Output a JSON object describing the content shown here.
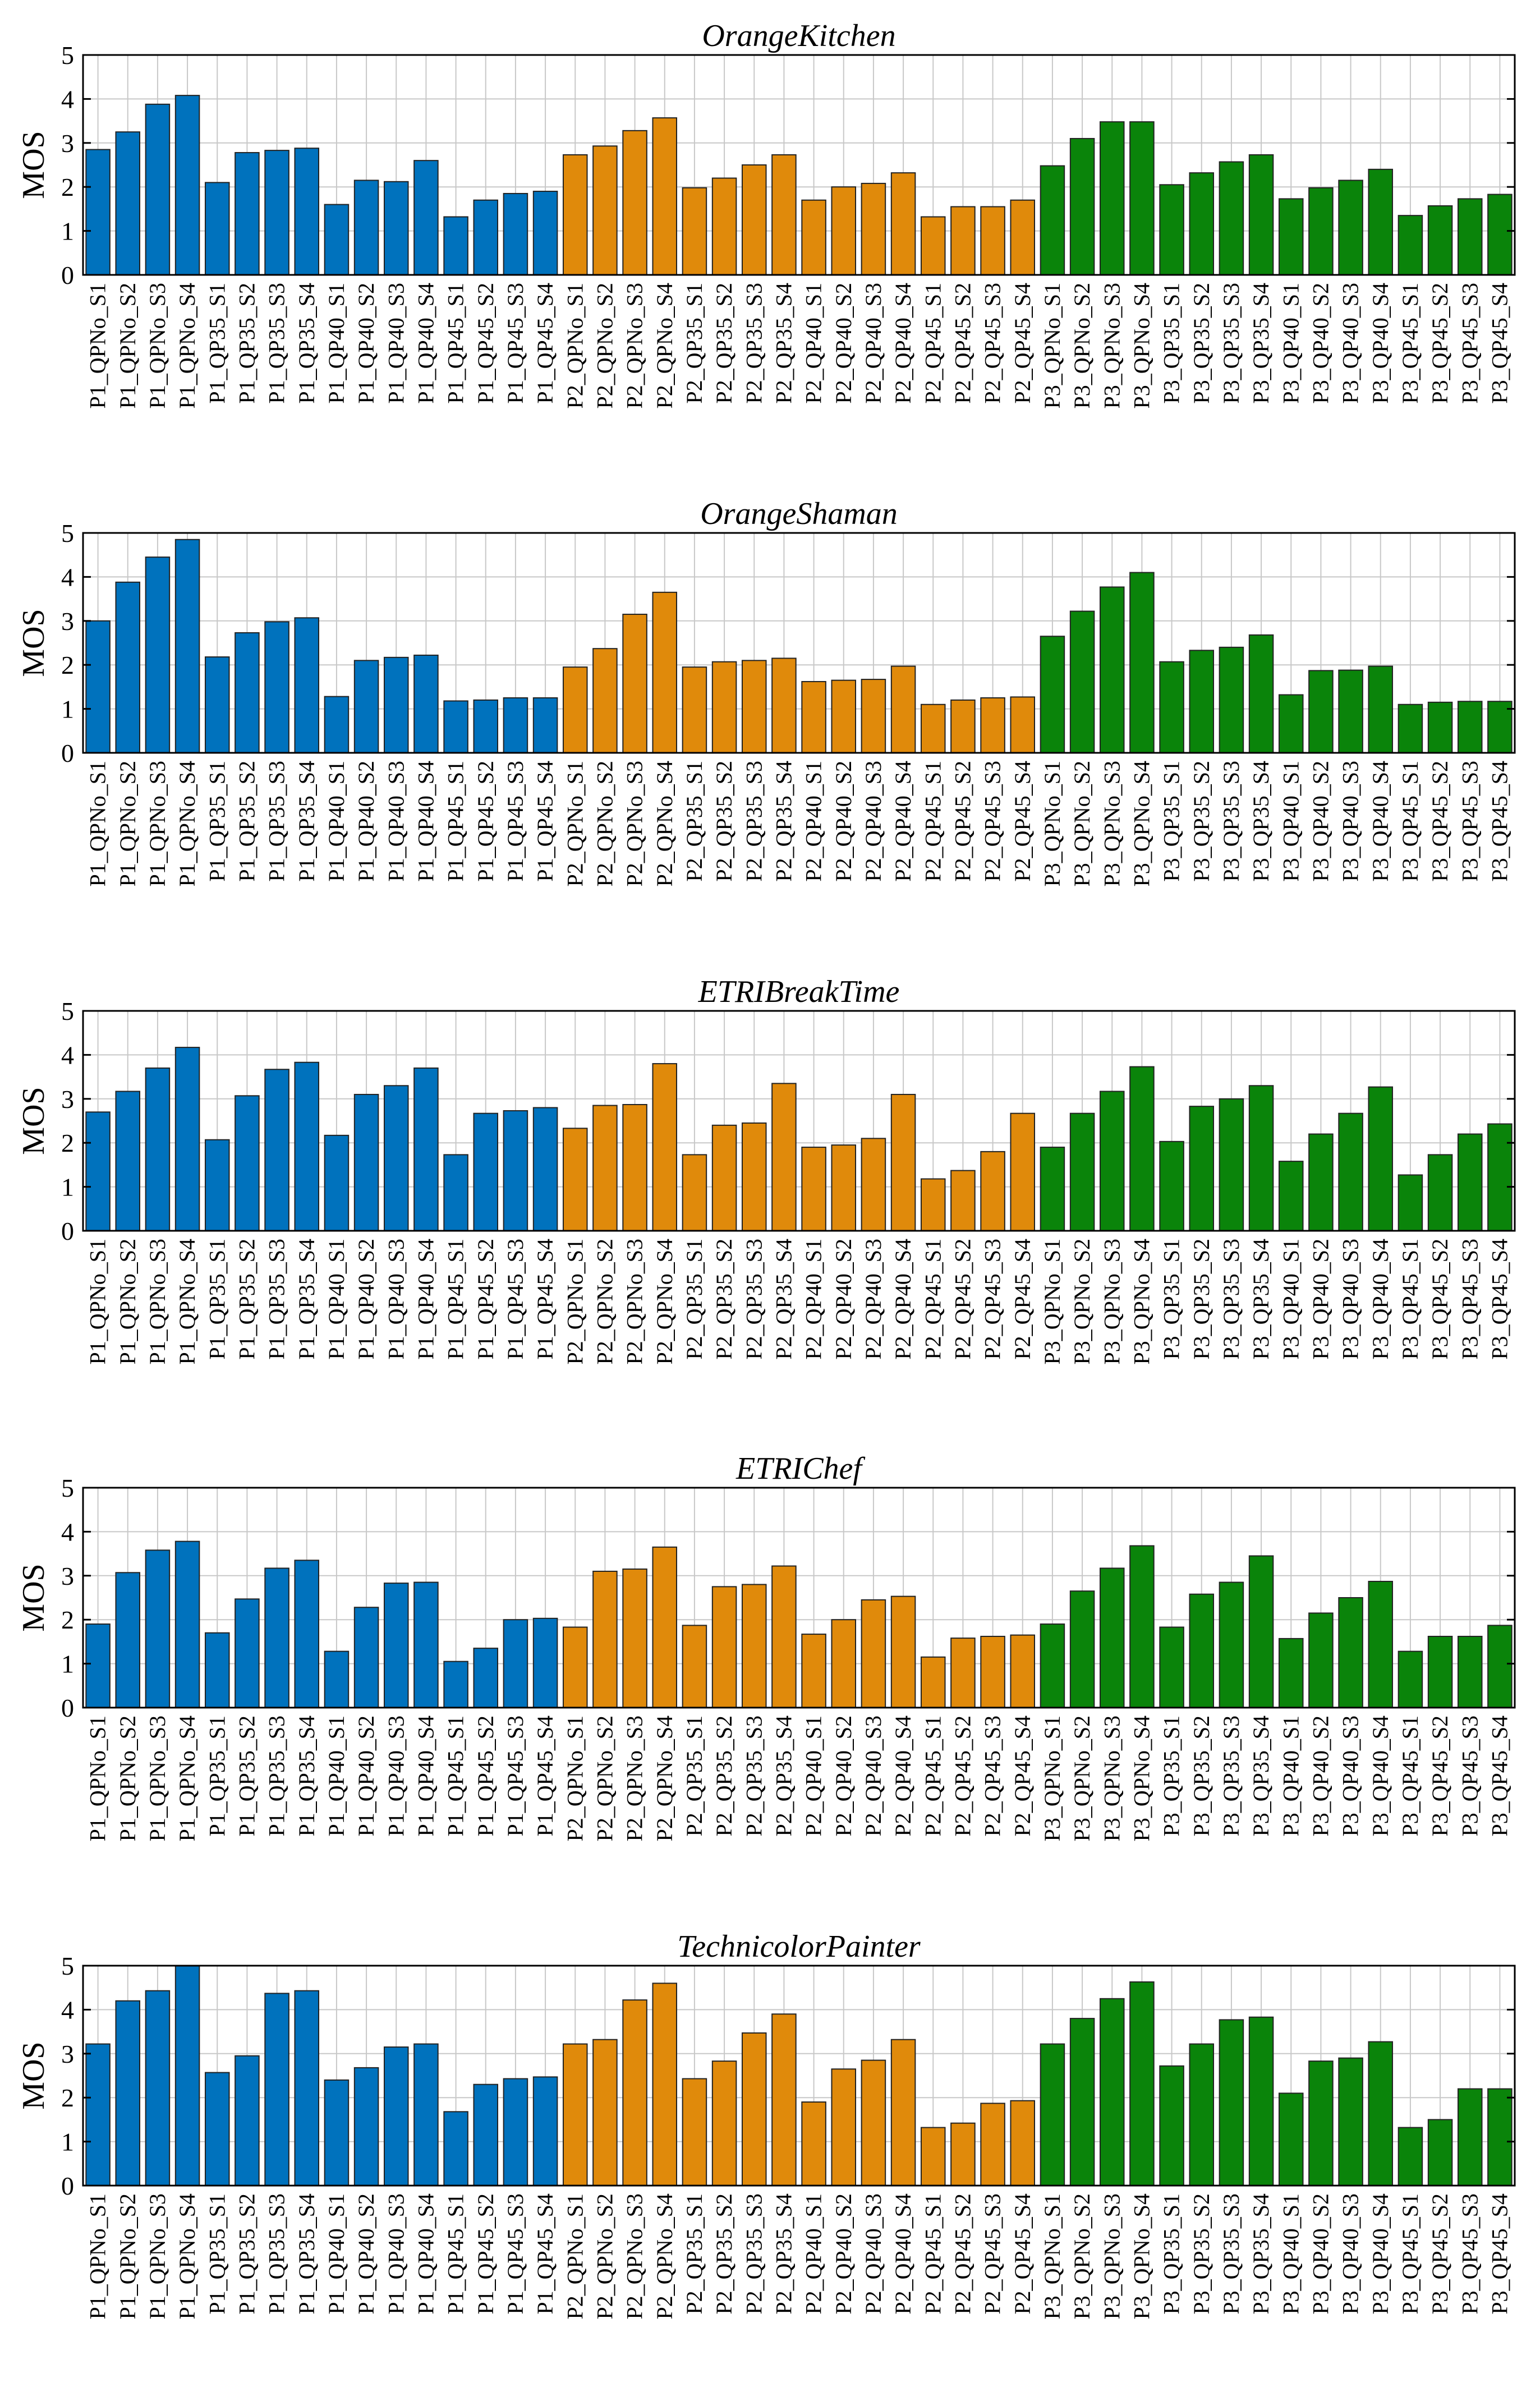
{
  "colors": {
    "P1": "#0072bd",
    "P2": "#e08a0b",
    "P3": "#0a840a"
  },
  "chart_data": [
    {
      "type": "bar",
      "title": "OrangeKitchen",
      "ylabel": "MOS",
      "ylim": [
        0,
        5
      ],
      "yticks": [
        "0",
        "1",
        "2",
        "3",
        "4",
        "5"
      ],
      "grid": true,
      "categories": [
        "P1_QPNo_S1",
        "P1_QPNo_S2",
        "P1_QPNo_S3",
        "P1_QPNo_S4",
        "P1_QP35_S1",
        "P1_QP35_S2",
        "P1_QP35_S3",
        "P1_QP35_S4",
        "P1_QP40_S1",
        "P1_QP40_S2",
        "P1_QP40_S3",
        "P1_QP40_S4",
        "P1_QP45_S1",
        "P1_QP45_S2",
        "P1_QP45_S3",
        "P1_QP45_S4",
        "P2_QPNo_S1",
        "P2_QPNo_S2",
        "P2_QPNo_S3",
        "P2_QPNo_S4",
        "P2_QP35_S1",
        "P2_QP35_S2",
        "P2_QP35_S3",
        "P2_QP35_S4",
        "P2_QP40_S1",
        "P2_QP40_S2",
        "P2_QP40_S3",
        "P2_QP40_S4",
        "P2_QP45_S1",
        "P2_QP45_S2",
        "P2_QP45_S3",
        "P2_QP45_S4",
        "P3_QPNo_S1",
        "P3_QPNo_S2",
        "P3_QPNo_S3",
        "P3_QPNo_S4",
        "P3_QP35_S1",
        "P3_QP35_S2",
        "P3_QP35_S3",
        "P3_QP35_S4",
        "P3_QP40_S1",
        "P3_QP40_S2",
        "P3_QP40_S3",
        "P3_QP40_S4",
        "P3_QP45_S1",
        "P3_QP45_S2",
        "P3_QP45_S3",
        "P3_QP45_S4"
      ],
      "values": [
        2.85,
        3.25,
        3.88,
        4.08,
        2.1,
        2.78,
        2.83,
        2.88,
        1.6,
        2.15,
        2.12,
        2.6,
        1.32,
        1.7,
        1.85,
        1.9,
        2.73,
        2.93,
        3.28,
        3.57,
        1.98,
        2.2,
        2.5,
        2.73,
        1.7,
        2.0,
        2.08,
        2.32,
        1.32,
        1.55,
        1.55,
        1.7,
        2.48,
        3.1,
        3.48,
        3.48,
        2.05,
        2.32,
        2.57,
        2.73,
        1.73,
        1.98,
        2.15,
        2.4,
        1.35,
        1.57,
        1.73,
        1.83
      ]
    },
    {
      "type": "bar",
      "title": "OrangeShaman",
      "ylabel": "MOS",
      "ylim": [
        0,
        5
      ],
      "yticks": [
        "0",
        "1",
        "2",
        "3",
        "4",
        "5"
      ],
      "grid": true,
      "categories": [
        "P1_QPNo_S1",
        "P1_QPNo_S2",
        "P1_QPNo_S3",
        "P1_QPNo_S4",
        "P1_QP35_S1",
        "P1_QP35_S2",
        "P1_QP35_S3",
        "P1_QP35_S4",
        "P1_QP40_S1",
        "P1_QP40_S2",
        "P1_QP40_S3",
        "P1_QP40_S4",
        "P1_QP45_S1",
        "P1_QP45_S2",
        "P1_QP45_S3",
        "P1_QP45_S4",
        "P2_QPNo_S1",
        "P2_QPNo_S2",
        "P2_QPNo_S3",
        "P2_QPNo_S4",
        "P2_QP35_S1",
        "P2_QP35_S2",
        "P2_QP35_S3",
        "P2_QP35_S4",
        "P2_QP40_S1",
        "P2_QP40_S2",
        "P2_QP40_S3",
        "P2_QP40_S4",
        "P2_QP45_S1",
        "P2_QP45_S2",
        "P2_QP45_S3",
        "P2_QP45_S4",
        "P3_QPNo_S1",
        "P3_QPNo_S2",
        "P3_QPNo_S3",
        "P3_QPNo_S4",
        "P3_QP35_S1",
        "P3_QP35_S2",
        "P3_QP35_S3",
        "P3_QP35_S4",
        "P3_QP40_S1",
        "P3_QP40_S2",
        "P3_QP40_S3",
        "P3_QP40_S4",
        "P3_QP45_S1",
        "P3_QP45_S2",
        "P3_QP45_S3",
        "P3_QP45_S4"
      ],
      "values": [
        3.0,
        3.88,
        4.45,
        4.85,
        2.18,
        2.73,
        2.98,
        3.07,
        1.28,
        2.1,
        2.17,
        2.22,
        1.18,
        1.2,
        1.25,
        1.25,
        1.95,
        2.37,
        3.15,
        3.65,
        1.95,
        2.07,
        2.1,
        2.15,
        1.62,
        1.65,
        1.67,
        1.97,
        1.1,
        1.2,
        1.25,
        1.27,
        2.65,
        3.22,
        3.77,
        4.1,
        2.07,
        2.33,
        2.4,
        2.68,
        1.32,
        1.87,
        1.88,
        1.97,
        1.1,
        1.15,
        1.17,
        1.17
      ]
    },
    {
      "type": "bar",
      "title": "ETRIBreakTime",
      "ylabel": "MOS",
      "ylim": [
        0,
        5
      ],
      "yticks": [
        "0",
        "1",
        "2",
        "3",
        "4",
        "5"
      ],
      "grid": true,
      "categories": [
        "P1_QPNo_S1",
        "P1_QPNo_S2",
        "P1_QPNo_S3",
        "P1_QPNo_S4",
        "P1_QP35_S1",
        "P1_QP35_S2",
        "P1_QP35_S3",
        "P1_QP35_S4",
        "P1_QP40_S1",
        "P1_QP40_S2",
        "P1_QP40_S3",
        "P1_QP40_S4",
        "P1_QP45_S1",
        "P1_QP45_S2",
        "P1_QP45_S3",
        "P1_QP45_S4",
        "P2_QPNo_S1",
        "P2_QPNo_S2",
        "P2_QPNo_S3",
        "P2_QPNo_S4",
        "P2_QP35_S1",
        "P2_QP35_S2",
        "P2_QP35_S3",
        "P2_QP35_S4",
        "P2_QP40_S1",
        "P2_QP40_S2",
        "P2_QP40_S3",
        "P2_QP40_S4",
        "P2_QP45_S1",
        "P2_QP45_S2",
        "P2_QP45_S3",
        "P2_QP45_S4",
        "P3_QPNo_S1",
        "P3_QPNo_S2",
        "P3_QPNo_S3",
        "P3_QPNo_S4",
        "P3_QP35_S1",
        "P3_QP35_S2",
        "P3_QP35_S3",
        "P3_QP35_S4",
        "P3_QP40_S1",
        "P3_QP40_S2",
        "P3_QP40_S3",
        "P3_QP40_S4",
        "P3_QP45_S1",
        "P3_QP45_S2",
        "P3_QP45_S3",
        "P3_QP45_S4"
      ],
      "values": [
        2.7,
        3.17,
        3.7,
        4.17,
        2.07,
        3.07,
        3.67,
        3.83,
        2.17,
        3.1,
        3.3,
        3.7,
        1.73,
        2.67,
        2.73,
        2.8,
        2.33,
        2.85,
        2.87,
        3.8,
        1.73,
        2.4,
        2.45,
        3.35,
        1.9,
        1.95,
        2.1,
        3.1,
        1.18,
        1.37,
        1.8,
        2.67,
        1.9,
        2.67,
        3.17,
        3.73,
        2.03,
        2.83,
        3.0,
        3.3,
        1.58,
        2.2,
        2.67,
        3.27,
        1.27,
        1.73,
        2.2,
        2.43
      ]
    },
    {
      "type": "bar",
      "title": "ETRIChef",
      "ylabel": "MOS",
      "ylim": [
        0,
        5
      ],
      "yticks": [
        "0",
        "1",
        "2",
        "3",
        "4",
        "5"
      ],
      "grid": true,
      "categories": [
        "P1_QPNo_S1",
        "P1_QPNo_S2",
        "P1_QPNo_S3",
        "P1_QPNo_S4",
        "P1_QP35_S1",
        "P1_QP35_S2",
        "P1_QP35_S3",
        "P1_QP35_S4",
        "P1_QP40_S1",
        "P1_QP40_S2",
        "P1_QP40_S3",
        "P1_QP40_S4",
        "P1_QP45_S1",
        "P1_QP45_S2",
        "P1_QP45_S3",
        "P1_QP45_S4",
        "P2_QPNo_S1",
        "P2_QPNo_S2",
        "P2_QPNo_S3",
        "P2_QPNo_S4",
        "P2_QP35_S1",
        "P2_QP35_S2",
        "P2_QP35_S3",
        "P2_QP35_S4",
        "P2_QP40_S1",
        "P2_QP40_S2",
        "P2_QP40_S3",
        "P2_QP40_S4",
        "P2_QP45_S1",
        "P2_QP45_S2",
        "P2_QP45_S3",
        "P2_QP45_S4",
        "P3_QPNo_S1",
        "P3_QPNo_S2",
        "P3_QPNo_S3",
        "P3_QPNo_S4",
        "P3_QP35_S1",
        "P3_QP35_S2",
        "P3_QP35_S3",
        "P3_QP35_S4",
        "P3_QP40_S1",
        "P3_QP40_S2",
        "P3_QP40_S3",
        "P3_QP40_S4",
        "P3_QP45_S1",
        "P3_QP45_S2",
        "P3_QP45_S3",
        "P3_QP45_S4"
      ],
      "values": [
        1.9,
        3.07,
        3.58,
        3.78,
        1.7,
        2.47,
        3.17,
        3.35,
        1.28,
        2.28,
        2.83,
        2.85,
        1.05,
        1.35,
        2.0,
        2.03,
        1.83,
        3.1,
        3.15,
        3.65,
        1.87,
        2.75,
        2.8,
        3.22,
        1.67,
        2.0,
        2.45,
        2.53,
        1.15,
        1.58,
        1.62,
        1.65,
        1.9,
        2.65,
        3.17,
        3.68,
        1.83,
        2.58,
        2.85,
        3.45,
        1.57,
        2.15,
        2.5,
        2.87,
        1.28,
        1.62,
        1.62,
        1.87
      ]
    },
    {
      "type": "bar",
      "title": "TechnicolorPainter",
      "ylabel": "MOS",
      "ylim": [
        0,
        5
      ],
      "yticks": [
        "0",
        "1",
        "2",
        "3",
        "4",
        "5"
      ],
      "grid": true,
      "categories": [
        "P1_QPNo_S1",
        "P1_QPNo_S2",
        "P1_QPNo_S3",
        "P1_QPNo_S4",
        "P1_QP35_S1",
        "P1_QP35_S2",
        "P1_QP35_S3",
        "P1_QP35_S4",
        "P1_QP40_S1",
        "P1_QP40_S2",
        "P1_QP40_S3",
        "P1_QP40_S4",
        "P1_QP45_S1",
        "P1_QP45_S2",
        "P1_QP45_S3",
        "P1_QP45_S4",
        "P2_QPNo_S1",
        "P2_QPNo_S2",
        "P2_QPNo_S3",
        "P2_QPNo_S4",
        "P2_QP35_S1",
        "P2_QP35_S2",
        "P2_QP35_S3",
        "P2_QP35_S4",
        "P2_QP40_S1",
        "P2_QP40_S2",
        "P2_QP40_S3",
        "P2_QP40_S4",
        "P2_QP45_S1",
        "P2_QP45_S2",
        "P2_QP45_S3",
        "P2_QP45_S4",
        "P3_QPNo_S1",
        "P3_QPNo_S2",
        "P3_QPNo_S3",
        "P3_QPNo_S4",
        "P3_QP35_S1",
        "P3_QP35_S2",
        "P3_QP35_S3",
        "P3_QP35_S4",
        "P3_QP40_S1",
        "P3_QP40_S2",
        "P3_QP40_S3",
        "P3_QP40_S4",
        "P3_QP45_S1",
        "P3_QP45_S2",
        "P3_QP45_S3",
        "P3_QP45_S4"
      ],
      "values": [
        3.22,
        4.2,
        4.43,
        5.0,
        2.57,
        2.95,
        4.37,
        4.43,
        2.4,
        2.68,
        3.15,
        3.22,
        1.68,
        2.3,
        2.43,
        2.47,
        3.22,
        3.32,
        4.22,
        4.6,
        2.43,
        2.83,
        3.47,
        3.9,
        1.9,
        2.65,
        2.85,
        3.32,
        1.32,
        1.42,
        1.87,
        1.93,
        3.22,
        3.8,
        4.25,
        4.63,
        2.72,
        3.22,
        3.77,
        3.83,
        2.1,
        2.83,
        2.9,
        3.27,
        1.32,
        1.5,
        2.2,
        2.2
      ]
    }
  ]
}
